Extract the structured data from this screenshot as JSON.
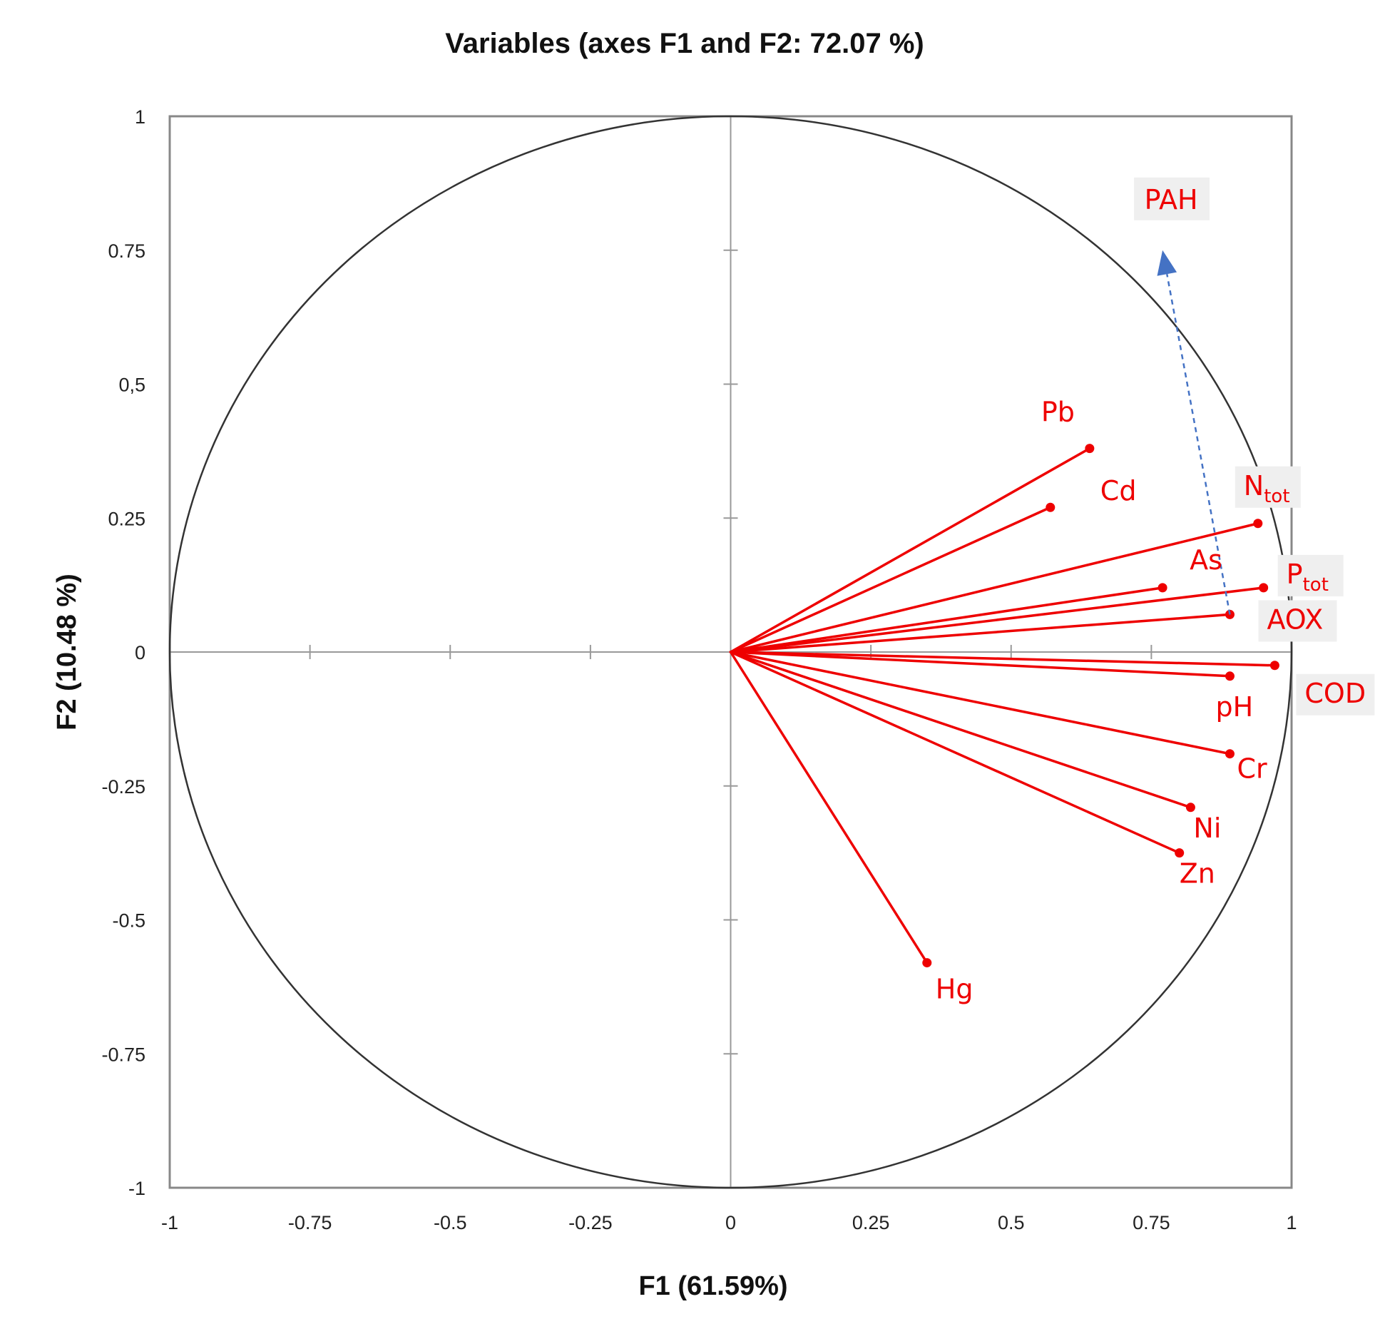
{
  "chart_data": {
    "type": "scatter",
    "subtype": "pca-correlation-circle",
    "title": "Variables (axes F1 and F2: 72.07 %)",
    "xlabel": "F1 (61.59%)",
    "ylabel": "F2 (10.48 %)",
    "xlim": [
      -1,
      1
    ],
    "ylim": [
      -1,
      1
    ],
    "x_ticks": [
      -1,
      -0.75,
      -0.5,
      -0.25,
      0,
      0.25,
      0.5,
      0.75,
      1
    ],
    "x_tick_labels": [
      "-1",
      "-0.75",
      "-0.5",
      "-0.25",
      "0",
      "0.25",
      "0.5",
      "0.75",
      "1"
    ],
    "y_ticks": [
      1,
      0.75,
      0.5,
      0.25,
      0,
      -0.25,
      -0.5,
      -0.75,
      -1
    ],
    "y_tick_labels": [
      "1",
      "0.75",
      "0,5",
      "0.25",
      "0",
      "-0.25",
      "-0.5",
      "-0.75",
      "-1"
    ],
    "unit_circle": true,
    "grid": false,
    "colors": {
      "vector": "#ee0000",
      "label": "#ee0000",
      "circle": "#333333",
      "frame": "#888888",
      "arrow": "#4472c4"
    },
    "variables": [
      {
        "name": "Pb",
        "sub": "",
        "x": 0.64,
        "y": 0.38
      },
      {
        "name": "Cd",
        "sub": "",
        "x": 0.57,
        "y": 0.27
      },
      {
        "name": "N",
        "sub": "tot",
        "x": 0.94,
        "y": 0.24
      },
      {
        "name": "As",
        "sub": "",
        "x": 0.77,
        "y": 0.12
      },
      {
        "name": "P",
        "sub": "tot",
        "x": 0.95,
        "y": 0.12
      },
      {
        "name": "AOX",
        "sub": "",
        "x": 0.89,
        "y": 0.07
      },
      {
        "name": "COD",
        "sub": "",
        "x": 0.97,
        "y": -0.025
      },
      {
        "name": "pH",
        "sub": "",
        "x": 0.89,
        "y": -0.045
      },
      {
        "name": "Cr",
        "sub": "",
        "x": 0.89,
        "y": -0.19
      },
      {
        "name": "Ni",
        "sub": "",
        "x": 0.82,
        "y": -0.29
      },
      {
        "name": "Zn",
        "sub": "",
        "x": 0.8,
        "y": -0.375
      },
      {
        "name": "Hg",
        "sub": "",
        "x": 0.35,
        "y": -0.58
      }
    ],
    "annotations": [
      {
        "label": "PAH",
        "from": [
          0.89,
          0.07
        ],
        "to": [
          0.77,
          0.75
        ],
        "style": "dashed-arrow"
      }
    ]
  }
}
